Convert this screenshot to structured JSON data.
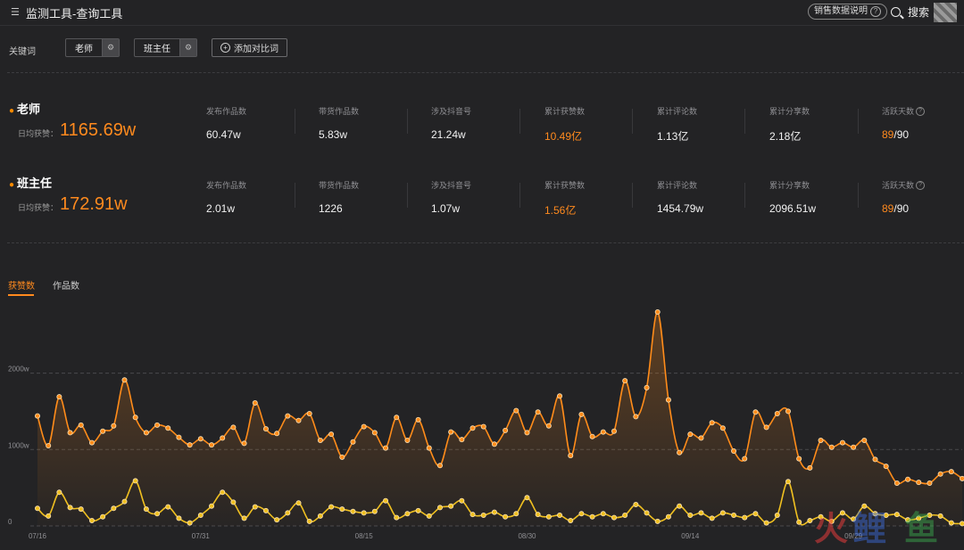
{
  "header": {
    "title": "监测工具-查询工具",
    "help_label": "销售数据说明",
    "search_label": "搜索"
  },
  "keywords_bar": {
    "label": "关键词",
    "chips": [
      "老师",
      "班主任"
    ],
    "add_label": "添加对比词"
  },
  "stat_headers": [
    "发布作品数",
    "带货作品数",
    "涉及抖音号",
    "累计获赞数",
    "累计评论数",
    "累计分享数",
    "活跃天数"
  ],
  "keywords": [
    {
      "name": "老师",
      "daily_label": "日均获赞：",
      "daily_value": "1165.69w",
      "stats": [
        "60.47w",
        "5.83w",
        "21.24w",
        "10.49亿",
        "1.13亿",
        "2.18亿"
      ],
      "active_days": "89",
      "active_total": "/90"
    },
    {
      "name": "班主任",
      "daily_label": "日均获赞：",
      "daily_value": "172.91w",
      "stats": [
        "2.01w",
        "1226",
        "1.07w",
        "1.56亿",
        "1454.79w",
        "2096.51w"
      ],
      "active_days": "89",
      "active_total": "/90"
    }
  ],
  "tabs": [
    "获赞数",
    "作品数"
  ],
  "watermark": "火鲤鱼",
  "colors": {
    "accent": "#ff8a1e",
    "series_teacher": "#ff8c1a",
    "series_headteacher": "#f0c020"
  },
  "chart_data": {
    "type": "line",
    "ylabel": "",
    "yticks": [
      "0",
      "1000w",
      "2000w"
    ],
    "ylim": [
      0,
      2800
    ],
    "x_tick_labels": [
      "07/16",
      "07/31",
      "08/15",
      "08/30",
      "09/14",
      "09/29"
    ],
    "x_tick_index": [
      0,
      15,
      30,
      45,
      60,
      75
    ],
    "series": [
      {
        "name": "老师",
        "values": [
          1440,
          1050,
          1690,
          1220,
          1320,
          1090,
          1240,
          1310,
          1910,
          1420,
          1220,
          1320,
          1280,
          1160,
          1060,
          1140,
          1060,
          1150,
          1290,
          1080,
          1610,
          1270,
          1210,
          1440,
          1380,
          1470,
          1120,
          1200,
          900,
          1100,
          1300,
          1220,
          1020,
          1420,
          1120,
          1390,
          1020,
          790,
          1230,
          1130,
          1280,
          1300,
          1070,
          1250,
          1510,
          1220,
          1490,
          1310,
          1700,
          920,
          1460,
          1170,
          1230,
          1240,
          1900,
          1430,
          1810,
          2800,
          1650,
          960,
          1200,
          1150,
          1350,
          1280,
          980,
          880,
          1490,
          1290,
          1470,
          1500,
          880,
          760,
          1120,
          1030,
          1090,
          1030,
          1120,
          870,
          780,
          560,
          610,
          570,
          560,
          680,
          710,
          620
        ]
      },
      {
        "name": "班主任",
        "values": [
          230,
          130,
          440,
          240,
          220,
          70,
          120,
          230,
          320,
          590,
          220,
          160,
          250,
          100,
          40,
          140,
          260,
          440,
          310,
          100,
          250,
          200,
          80,
          170,
          300,
          60,
          130,
          250,
          220,
          190,
          170,
          190,
          330,
          110,
          160,
          200,
          130,
          240,
          260,
          330,
          150,
          140,
          180,
          120,
          160,
          370,
          150,
          120,
          140,
          70,
          160,
          120,
          160,
          110,
          140,
          280,
          170,
          60,
          120,
          260,
          140,
          170,
          100,
          170,
          140,
          110,
          160,
          40,
          140,
          580,
          50,
          70,
          120,
          60,
          170,
          90,
          260,
          160,
          140,
          150,
          80,
          100,
          140,
          130,
          40,
          30
        ]
      }
    ]
  }
}
